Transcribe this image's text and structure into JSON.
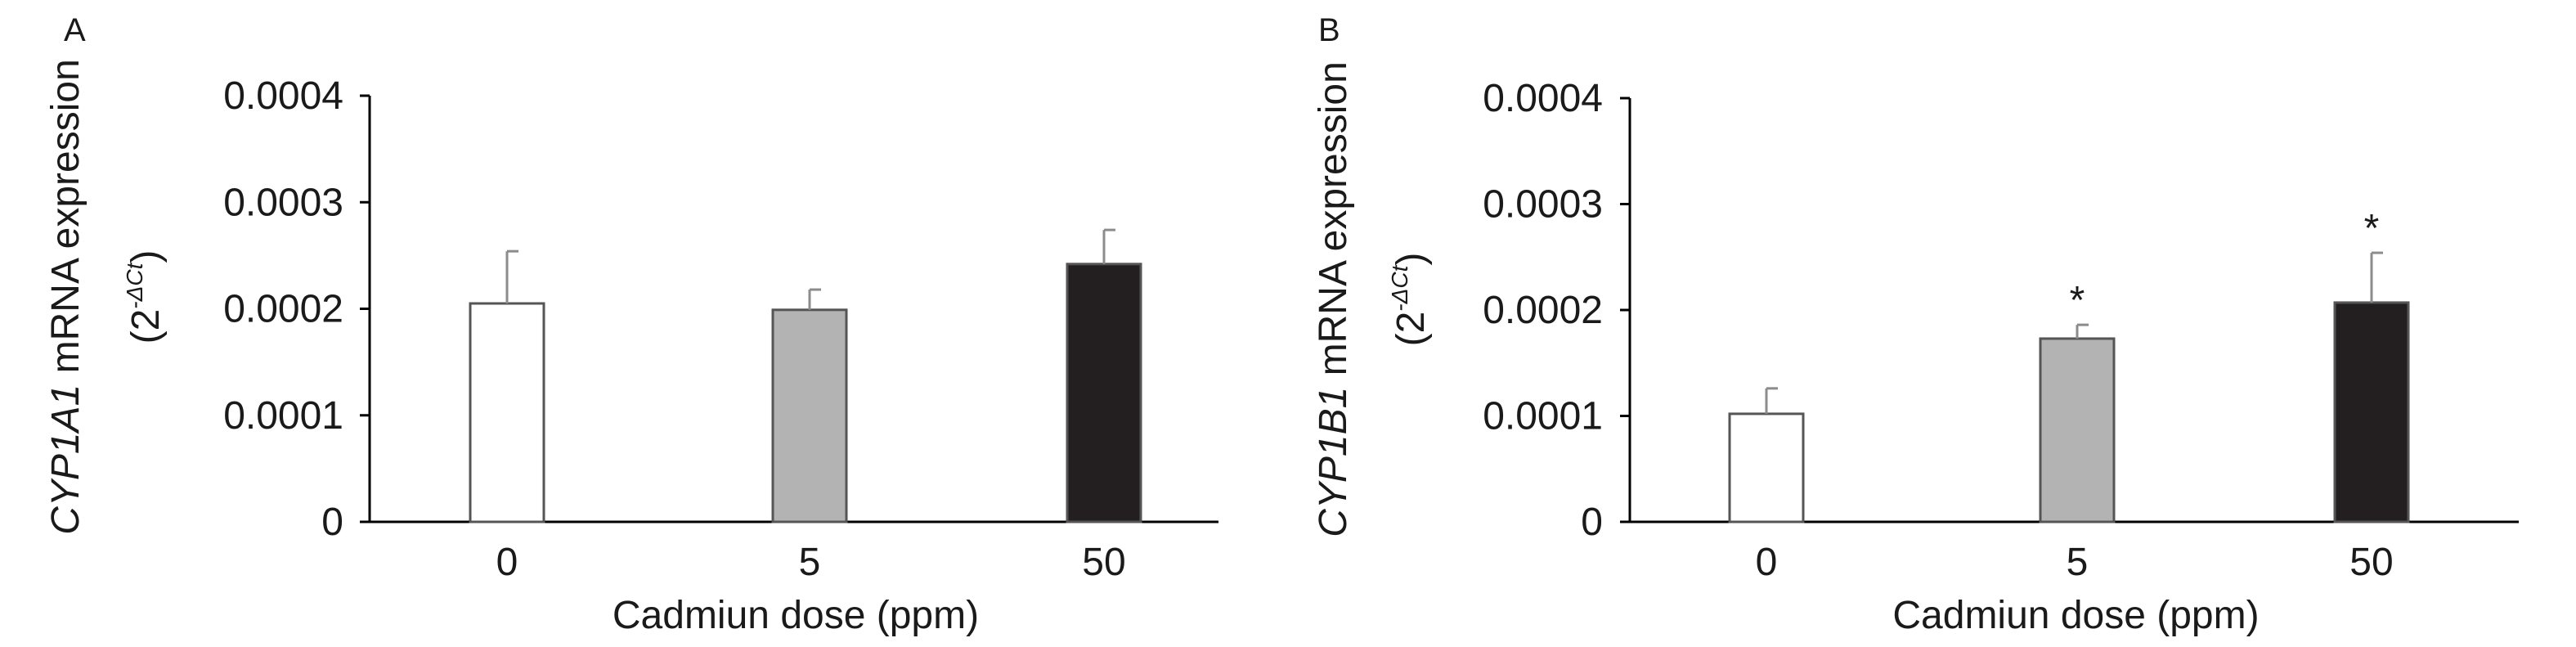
{
  "chart_data": [
    {
      "panel": "A",
      "type": "bar",
      "categories": [
        "0",
        "5",
        "50"
      ],
      "values": [
        0.000205,
        0.000199,
        0.000242
      ],
      "errors": [
        4.9e-05,
        1.9e-05,
        3.2e-05
      ],
      "significance": [
        "",
        "",
        ""
      ],
      "bar_colors": [
        "#ffffff",
        "#b3b3b3",
        "#231f20"
      ],
      "xlabel": "Cadmiun dose (ppm)",
      "ylabel_gene": "CYP1A1",
      "ylabel_rest": " mRNA expression",
      "ylabel_unit_open": "(2",
      "ylabel_unit_sup": "-ΔCt",
      "ylabel_unit_close": ")",
      "ylim": [
        0,
        0.0004
      ],
      "yticks": [
        "0",
        "0.0001",
        "0.0002",
        "0.0003",
        "0.0004"
      ],
      "grid": false,
      "legend": "none"
    },
    {
      "panel": "B",
      "type": "bar",
      "categories": [
        "0",
        "5",
        "50"
      ],
      "values": [
        0.000102,
        0.000173,
        0.000207
      ],
      "errors": [
        2.4e-05,
        1.3e-05,
        4.7e-05
      ],
      "significance": [
        "",
        "*",
        "*"
      ],
      "bar_colors": [
        "#ffffff",
        "#b3b3b3",
        "#231f20"
      ],
      "xlabel": "Cadmiun dose (ppm)",
      "ylabel_gene": "CYP1B1",
      "ylabel_rest": " mRNA expression",
      "ylabel_unit_open": "(2",
      "ylabel_unit_sup": "-ΔCt",
      "ylabel_unit_close": ")",
      "ylim": [
        0,
        0.0004
      ],
      "yticks": [
        "0",
        "0.0001",
        "0.0002",
        "0.0003",
        "0.0004"
      ],
      "grid": false,
      "legend": "none"
    }
  ]
}
